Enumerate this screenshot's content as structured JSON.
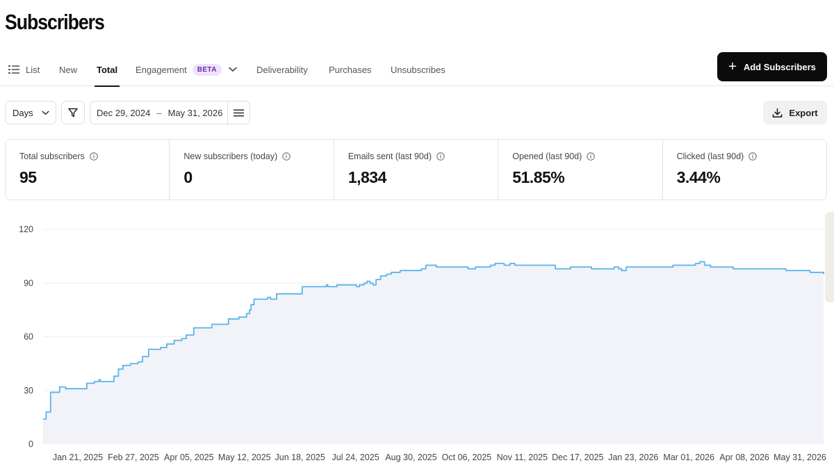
{
  "header": {
    "title": "Subscribers"
  },
  "tabs": {
    "list": "List",
    "new": "New",
    "total": "Total",
    "engagement": "Engagement",
    "engagement_badge": "BETA",
    "deliverability": "Deliverability",
    "purchases": "Purchases",
    "unsubscribes": "Unsubscribes",
    "active": "Total"
  },
  "actions": {
    "add_subscribers": "Add Subscribers",
    "export": "Export"
  },
  "toolbar": {
    "interval": "Days",
    "date_start": "Dec 29, 2024",
    "date_sep": "–",
    "date_end": "May 31, 2026"
  },
  "stats": [
    {
      "label": "Total subscribers",
      "value": "95"
    },
    {
      "label": "New subscribers (today)",
      "value": "0"
    },
    {
      "label": "Emails sent (last 90d)",
      "value": "1,834"
    },
    {
      "label": "Opened (last 90d)",
      "value": "51.85%"
    },
    {
      "label": "Clicked (last 90d)",
      "value": "3.44%"
    }
  ],
  "colors": {
    "line": "#5ab3ea",
    "area": "#f1f3f8",
    "grid": "#eeeeee",
    "button_dark": "#0b0b0b",
    "beta_bg": "#efe2fb",
    "beta_text": "#6b2aa8"
  },
  "chart_data": {
    "type": "area",
    "ylim": [
      0,
      120
    ],
    "yticks": [
      0,
      30,
      60,
      90,
      120
    ],
    "xticks": [
      "Jan 21, 2025",
      "Feb 27, 2025",
      "Apr 05, 2025",
      "May 12, 2025",
      "Jun 18, 2025",
      "Jul 24, 2025",
      "Aug 30, 2025",
      "Oct 06, 2025",
      "Nov 11, 2025",
      "Dec 17, 2025",
      "Jan 23, 2026",
      "Mar 01, 2026",
      "Apr 08, 2026",
      "May 31, 2026"
    ],
    "x_start": "2024-12-29",
    "x_end": "2026-05-31",
    "series": [
      {
        "points": [
          [
            "2024-12-29",
            14
          ],
          [
            "2024-12-31",
            18
          ],
          [
            "2025-01-03",
            29
          ],
          [
            "2025-01-08",
            29
          ],
          [
            "2025-01-09",
            32
          ],
          [
            "2025-01-12",
            32
          ],
          [
            "2025-01-13",
            31
          ],
          [
            "2025-01-25",
            31
          ],
          [
            "2025-01-27",
            34
          ],
          [
            "2025-02-01",
            35
          ],
          [
            "2025-02-04",
            36
          ],
          [
            "2025-02-05",
            35
          ],
          [
            "2025-02-11",
            35
          ],
          [
            "2025-02-14",
            38
          ],
          [
            "2025-02-17",
            42
          ],
          [
            "2025-02-20",
            44
          ],
          [
            "2025-02-25",
            45
          ],
          [
            "2025-03-02",
            46
          ],
          [
            "2025-03-05",
            49
          ],
          [
            "2025-03-09",
            53
          ],
          [
            "2025-03-17",
            54
          ],
          [
            "2025-03-21",
            56
          ],
          [
            "2025-03-26",
            58
          ],
          [
            "2025-03-31",
            59
          ],
          [
            "2025-04-03",
            61
          ],
          [
            "2025-04-08",
            65
          ],
          [
            "2025-04-20",
            67
          ],
          [
            "2025-05-01",
            70
          ],
          [
            "2025-05-08",
            71
          ],
          [
            "2025-05-13",
            73
          ],
          [
            "2025-05-15",
            75
          ],
          [
            "2025-05-16",
            78
          ],
          [
            "2025-05-18",
            81
          ],
          [
            "2025-05-26",
            81
          ],
          [
            "2025-05-27",
            82
          ],
          [
            "2025-05-29",
            81
          ],
          [
            "2025-06-02",
            84
          ],
          [
            "2025-06-15",
            84
          ],
          [
            "2025-06-19",
            88
          ],
          [
            "2025-07-03",
            88
          ],
          [
            "2025-07-05",
            89
          ],
          [
            "2025-07-06",
            88
          ],
          [
            "2025-07-12",
            89
          ],
          [
            "2025-07-23",
            89
          ],
          [
            "2025-07-25",
            88
          ],
          [
            "2025-07-27",
            89
          ],
          [
            "2025-07-30",
            90
          ],
          [
            "2025-08-01",
            91
          ],
          [
            "2025-08-03",
            90
          ],
          [
            "2025-08-05",
            89
          ],
          [
            "2025-08-07",
            92
          ],
          [
            "2025-08-10",
            94
          ],
          [
            "2025-08-14",
            95
          ],
          [
            "2025-08-17",
            96
          ],
          [
            "2025-08-23",
            97
          ],
          [
            "2025-09-06",
            98
          ],
          [
            "2025-09-09",
            100
          ],
          [
            "2025-09-16",
            99
          ],
          [
            "2025-10-05",
            99
          ],
          [
            "2025-10-07",
            98
          ],
          [
            "2025-10-12",
            99
          ],
          [
            "2025-10-22",
            100
          ],
          [
            "2025-10-25",
            101
          ],
          [
            "2025-10-31",
            100
          ],
          [
            "2025-11-04",
            101
          ],
          [
            "2025-11-07",
            100
          ],
          [
            "2025-12-02",
            100
          ],
          [
            "2025-12-04",
            98
          ],
          [
            "2025-12-14",
            99
          ],
          [
            "2025-12-28",
            98
          ],
          [
            "2026-01-09",
            98
          ],
          [
            "2026-01-12",
            99
          ],
          [
            "2026-01-15",
            98
          ],
          [
            "2026-01-17",
            97
          ],
          [
            "2026-01-20",
            99
          ],
          [
            "2026-02-20",
            100
          ],
          [
            "2026-03-07",
            101
          ],
          [
            "2026-03-10",
            102
          ],
          [
            "2026-03-13",
            100
          ],
          [
            "2026-03-17",
            99
          ],
          [
            "2026-04-01",
            98
          ],
          [
            "2026-05-06",
            97
          ],
          [
            "2026-05-22",
            96
          ],
          [
            "2026-05-29",
            96
          ],
          [
            "2026-05-31",
            95
          ]
        ]
      }
    ]
  }
}
